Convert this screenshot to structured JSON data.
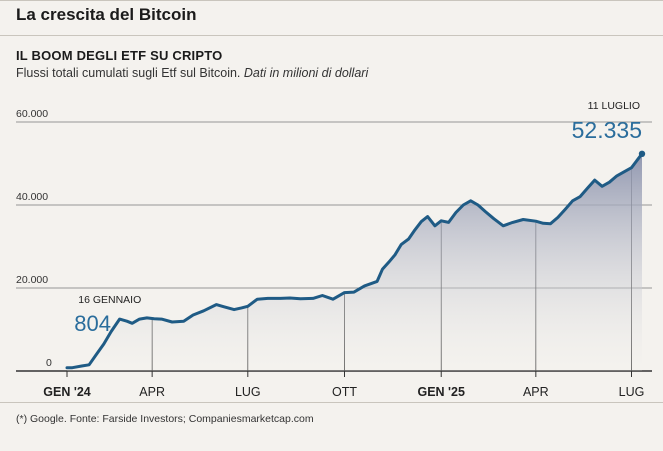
{
  "header": {
    "main_title": "La crescita del Bitcoin",
    "chart_title": "IL BOOM DEGLI ETF SU CRIPTO",
    "subtitle": "Flussi totali cumulati sugli Etf sul Bitcoin.",
    "subtitle_unit": "Dati in milioni di dollari"
  },
  "footer": {
    "source": "(*) Google. Fonte: Farside Investors; Companiesmarketcap.com"
  },
  "colors": {
    "line": "#1f5b85",
    "accent_text": "#2a6d9c",
    "area_top": "#8c93ad",
    "area_bottom": "#f4f2ee",
    "grid": "#555555",
    "background": "#f4f2ee"
  },
  "chart_data": {
    "type": "area",
    "xlabel": "",
    "ylabel": "",
    "ylim": [
      0,
      60000
    ],
    "y_ticks": [
      0,
      20000,
      40000,
      60000
    ],
    "y_tick_labels": [
      "0",
      "20.000",
      "40.000",
      "60.000"
    ],
    "x_ticks": [
      {
        "at": "2024-01-11",
        "label": "GEN '24",
        "bold": true
      },
      {
        "at": "2024-04-01",
        "label": "APR",
        "bold": false
      },
      {
        "at": "2024-07-01",
        "label": "LUG",
        "bold": false
      },
      {
        "at": "2024-10-01",
        "label": "OTT",
        "bold": false
      },
      {
        "at": "2025-01-01",
        "label": "GEN '25",
        "bold": true
      },
      {
        "at": "2025-04-01",
        "label": "APR",
        "bold": false
      },
      {
        "at": "2025-07-01",
        "label": "LUG",
        "bold": false
      }
    ],
    "grid": "horizontal",
    "annotations": [
      {
        "label": "16 GENNAIO",
        "value_label": "804",
        "x": "2024-01-16",
        "y": 804
      },
      {
        "label": "11 LUGLIO",
        "value_label": "52.335",
        "x": "2025-07-11",
        "y": 52335
      }
    ],
    "series": [
      {
        "x": [
          "2024-01-11",
          "2024-01-16",
          "2024-01-25",
          "2024-02-01",
          "2024-02-08",
          "2024-02-15",
          "2024-02-22",
          "2024-03-01",
          "2024-03-08",
          "2024-03-13",
          "2024-03-20",
          "2024-03-27",
          "2024-04-03",
          "2024-04-10",
          "2024-04-20",
          "2024-05-01",
          "2024-05-10",
          "2024-05-20",
          "2024-06-01",
          "2024-06-08",
          "2024-06-18",
          "2024-06-25",
          "2024-07-01",
          "2024-07-10",
          "2024-07-20",
          "2024-08-01",
          "2024-08-10",
          "2024-08-20",
          "2024-09-01",
          "2024-09-10",
          "2024-09-20",
          "2024-10-01",
          "2024-10-10",
          "2024-10-20",
          "2024-11-01",
          "2024-11-06",
          "2024-11-12",
          "2024-11-18",
          "2024-11-24",
          "2024-12-01",
          "2024-12-07",
          "2024-12-13",
          "2024-12-19",
          "2024-12-26",
          "2025-01-01",
          "2025-01-08",
          "2025-01-15",
          "2025-01-22",
          "2025-01-29",
          "2025-02-05",
          "2025-02-12",
          "2025-02-20",
          "2025-03-01",
          "2025-03-10",
          "2025-03-20",
          "2025-04-01",
          "2025-04-08",
          "2025-04-15",
          "2025-04-22",
          "2025-04-29",
          "2025-05-06",
          "2025-05-13",
          "2025-05-20",
          "2025-05-27",
          "2025-06-03",
          "2025-06-10",
          "2025-06-17",
          "2025-06-24",
          "2025-07-01",
          "2025-07-07",
          "2025-07-11"
        ],
        "values": [
          800,
          804,
          1200,
          1500,
          4000,
          6500,
          9500,
          12500,
          12000,
          11500,
          12500,
          12800,
          12600,
          12500,
          11800,
          12000,
          13500,
          14500,
          16000,
          15500,
          14800,
          15200,
          15600,
          17300,
          17500,
          17500,
          17600,
          17400,
          17500,
          18200,
          17300,
          18900,
          19000,
          20500,
          21600,
          24500,
          26200,
          28000,
          30500,
          31800,
          34000,
          36000,
          37200,
          35000,
          36200,
          35800,
          38200,
          40000,
          41000,
          40000,
          38400,
          36700,
          35000,
          35800,
          36500,
          36100,
          35600,
          35500,
          37000,
          39000,
          41000,
          42000,
          44000,
          46000,
          44500,
          45500,
          47000,
          48000,
          49000,
          51000,
          52335
        ]
      }
    ]
  }
}
